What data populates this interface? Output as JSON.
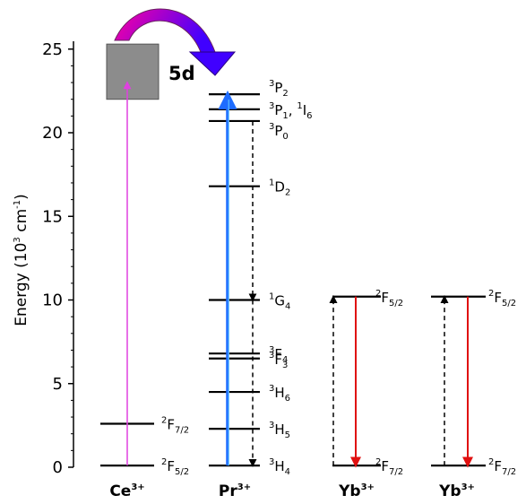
{
  "colors": {
    "level_line": "#000000",
    "band_fill": "#8c8c8c",
    "ce_excitation": "#e040e0",
    "pr_excitation": "#1e6cff",
    "pr_excitation_inner": "#6ad0ff",
    "yb_emission": "#e01010",
    "arc_start": "#ff00a0",
    "arc_end": "#4000ff"
  },
  "axis": {
    "label_main": "Energy (10",
    "label_sup": "3",
    "label_unit": " cm",
    "label_unit_sup": "-1",
    "label_close": ")",
    "ticks": [
      "0",
      "5",
      "10",
      "15",
      "20",
      "25"
    ]
  },
  "bands": {
    "ce_5d": {
      "label": "5d",
      "bottom": 22.0,
      "top": 25.3
    }
  },
  "columns": [
    {
      "id": "ce",
      "ion": "Ce",
      "ion_sup": "3+",
      "levels": [
        {
          "energy": 0.1,
          "pre": "2",
          "letter": "F",
          "sub": "5/2",
          "extra": ""
        },
        {
          "energy": 2.6,
          "pre": "2",
          "letter": "F",
          "sub": "7/2",
          "extra": ""
        }
      ]
    },
    {
      "id": "pr",
      "ion": "Pr",
      "ion_sup": "3+",
      "levels": [
        {
          "energy": 0.1,
          "pre": "3",
          "letter": "H",
          "sub": "4",
          "extra": ""
        },
        {
          "energy": 2.3,
          "pre": "3",
          "letter": "H",
          "sub": "5",
          "extra": ""
        },
        {
          "energy": 4.5,
          "pre": "3",
          "letter": "H",
          "sub": "6",
          "extra": ""
        },
        {
          "energy": 6.5,
          "pre": "3",
          "letter": "F",
          "sub": "3",
          "extra": ""
        },
        {
          "energy": 6.8,
          "pre": "3",
          "letter": "F",
          "sub": "4",
          "extra": ""
        },
        {
          "energy": 10.0,
          "pre": "1",
          "letter": "G",
          "sub": "4",
          "extra": ""
        },
        {
          "energy": 16.8,
          "pre": "1",
          "letter": "D",
          "sub": "2",
          "extra": ""
        },
        {
          "energy": 20.7,
          "pre": "3",
          "letter": "P",
          "sub": "0",
          "extra": ""
        },
        {
          "energy": 21.4,
          "pre": "3",
          "letter": "P",
          "sub": "1",
          "extra": ", 1I6"
        },
        {
          "energy": 22.3,
          "pre": "3",
          "letter": "P",
          "sub": "2",
          "extra": ""
        }
      ]
    },
    {
      "id": "yb1",
      "ion": "Yb",
      "ion_sup": "3+",
      "levels": [
        {
          "energy": 0.1,
          "pre": "2",
          "letter": "F",
          "sub": "7/2",
          "extra": ""
        },
        {
          "energy": 10.2,
          "pre": "2",
          "letter": "F",
          "sub": "5/2",
          "extra": ""
        }
      ]
    },
    {
      "id": "yb2",
      "ion": "Yb",
      "ion_sup": "3+",
      "levels": [
        {
          "energy": 0.1,
          "pre": "2",
          "letter": "F",
          "sub": "7/2",
          "extra": ""
        },
        {
          "energy": 10.2,
          "pre": "2",
          "letter": "F",
          "sub": "5/2",
          "extra": ""
        }
      ]
    }
  ],
  "transitions": [
    {
      "kind": "excitation",
      "column": "ce",
      "from": 0.1,
      "to": 23.0
    },
    {
      "kind": "excitation",
      "column": "pr",
      "from": 0.1,
      "to": 22.3
    },
    {
      "kind": "nonradiative",
      "column": "pr",
      "from": 20.7,
      "to": 10.0
    },
    {
      "kind": "nonradiative",
      "column": "pr",
      "from": 10.0,
      "to": 0.1
    },
    {
      "kind": "absorption",
      "column": "yb1",
      "from": 0.1,
      "to": 10.2
    },
    {
      "kind": "emission",
      "column": "yb1",
      "from": 10.2,
      "to": 0.1
    },
    {
      "kind": "absorption",
      "column": "yb2",
      "from": 0.1,
      "to": 10.2
    },
    {
      "kind": "emission",
      "column": "yb2",
      "from": 10.2,
      "to": 0.1
    }
  ]
}
